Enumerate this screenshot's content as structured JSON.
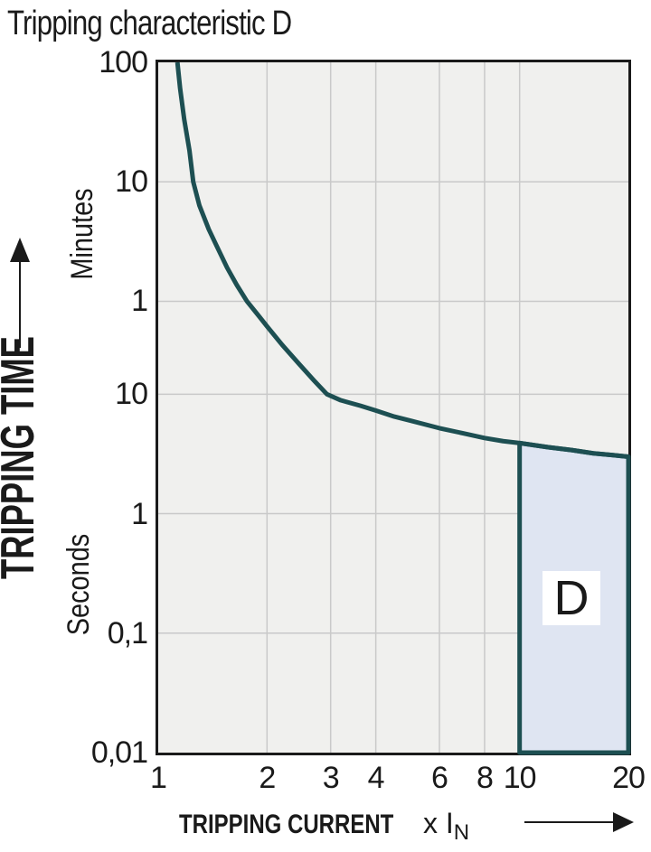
{
  "colors": {
    "curve": "#1d4f52",
    "region_fill": "#dfe5f2",
    "region_border": "#1d4f52",
    "plot_background": "#f0f0ee",
    "gridline": "#c9c9c9",
    "plot_border": "#1a1a1a",
    "text": "#1a1a1a",
    "region_label_background": "#ffffff"
  },
  "chart_data": {
    "type": "line",
    "title": "Tripping characteristic D",
    "x_axis": {
      "title": "TRIPPING CURRENT",
      "unit_text": "x I",
      "unit_subscript": "N",
      "scale": "log",
      "min": 1,
      "max": 20,
      "tick_values": [
        1,
        2,
        3,
        4,
        6,
        8,
        10,
        20
      ],
      "tick_labels": [
        "1",
        "2",
        "3",
        "4",
        "6",
        "8",
        "10",
        "20"
      ],
      "gridline_values": [
        2,
        3,
        4,
        6,
        8,
        10
      ]
    },
    "y_axis": {
      "title": "TRIPPING TIME",
      "scale": "log",
      "min_seconds": 0.01,
      "max_seconds": 6000,
      "unit_labels": [
        "Minutes",
        "Seconds"
      ],
      "ticks": [
        {
          "label": "100",
          "seconds": 6000
        },
        {
          "label": "10",
          "seconds": 600
        },
        {
          "label": "1",
          "seconds": 60
        },
        {
          "label": "10",
          "seconds": 10
        },
        {
          "label": "1",
          "seconds": 1
        },
        {
          "label": "0,1",
          "seconds": 0.1
        },
        {
          "label": "0,01",
          "seconds": 0.01
        }
      ],
      "gridline_seconds": [
        600,
        60,
        10,
        1,
        0.1
      ]
    },
    "series": [
      {
        "name": "tripping-curve",
        "points": [
          [
            1.13,
            6000
          ],
          [
            1.15,
            3600
          ],
          [
            1.18,
            2000
          ],
          [
            1.22,
            1100
          ],
          [
            1.25,
            600
          ],
          [
            1.3,
            380
          ],
          [
            1.38,
            240
          ],
          [
            1.45,
            175
          ],
          [
            1.55,
            115
          ],
          [
            1.65,
            82
          ],
          [
            1.76,
            60
          ],
          [
            1.9,
            45
          ],
          [
            2.0,
            37
          ],
          [
            2.2,
            26
          ],
          [
            2.45,
            18
          ],
          [
            2.7,
            13
          ],
          [
            2.93,
            10
          ],
          [
            3.2,
            8.9
          ],
          [
            3.63,
            8.0
          ],
          [
            4.0,
            7.3
          ],
          [
            4.5,
            6.5
          ],
          [
            5.0,
            6.0
          ],
          [
            6.0,
            5.2
          ],
          [
            7.0,
            4.7
          ],
          [
            8.0,
            4.3
          ],
          [
            9.0,
            4.05
          ],
          [
            10.0,
            3.9
          ],
          [
            12.0,
            3.6
          ],
          [
            14.0,
            3.4
          ],
          [
            16.0,
            3.2
          ],
          [
            18.0,
            3.1
          ],
          [
            20.0,
            3.0
          ]
        ]
      }
    ],
    "region": {
      "label": "D",
      "x_from": 10,
      "x_to": 20,
      "bottom_seconds": 0.01,
      "top": "curve"
    }
  }
}
